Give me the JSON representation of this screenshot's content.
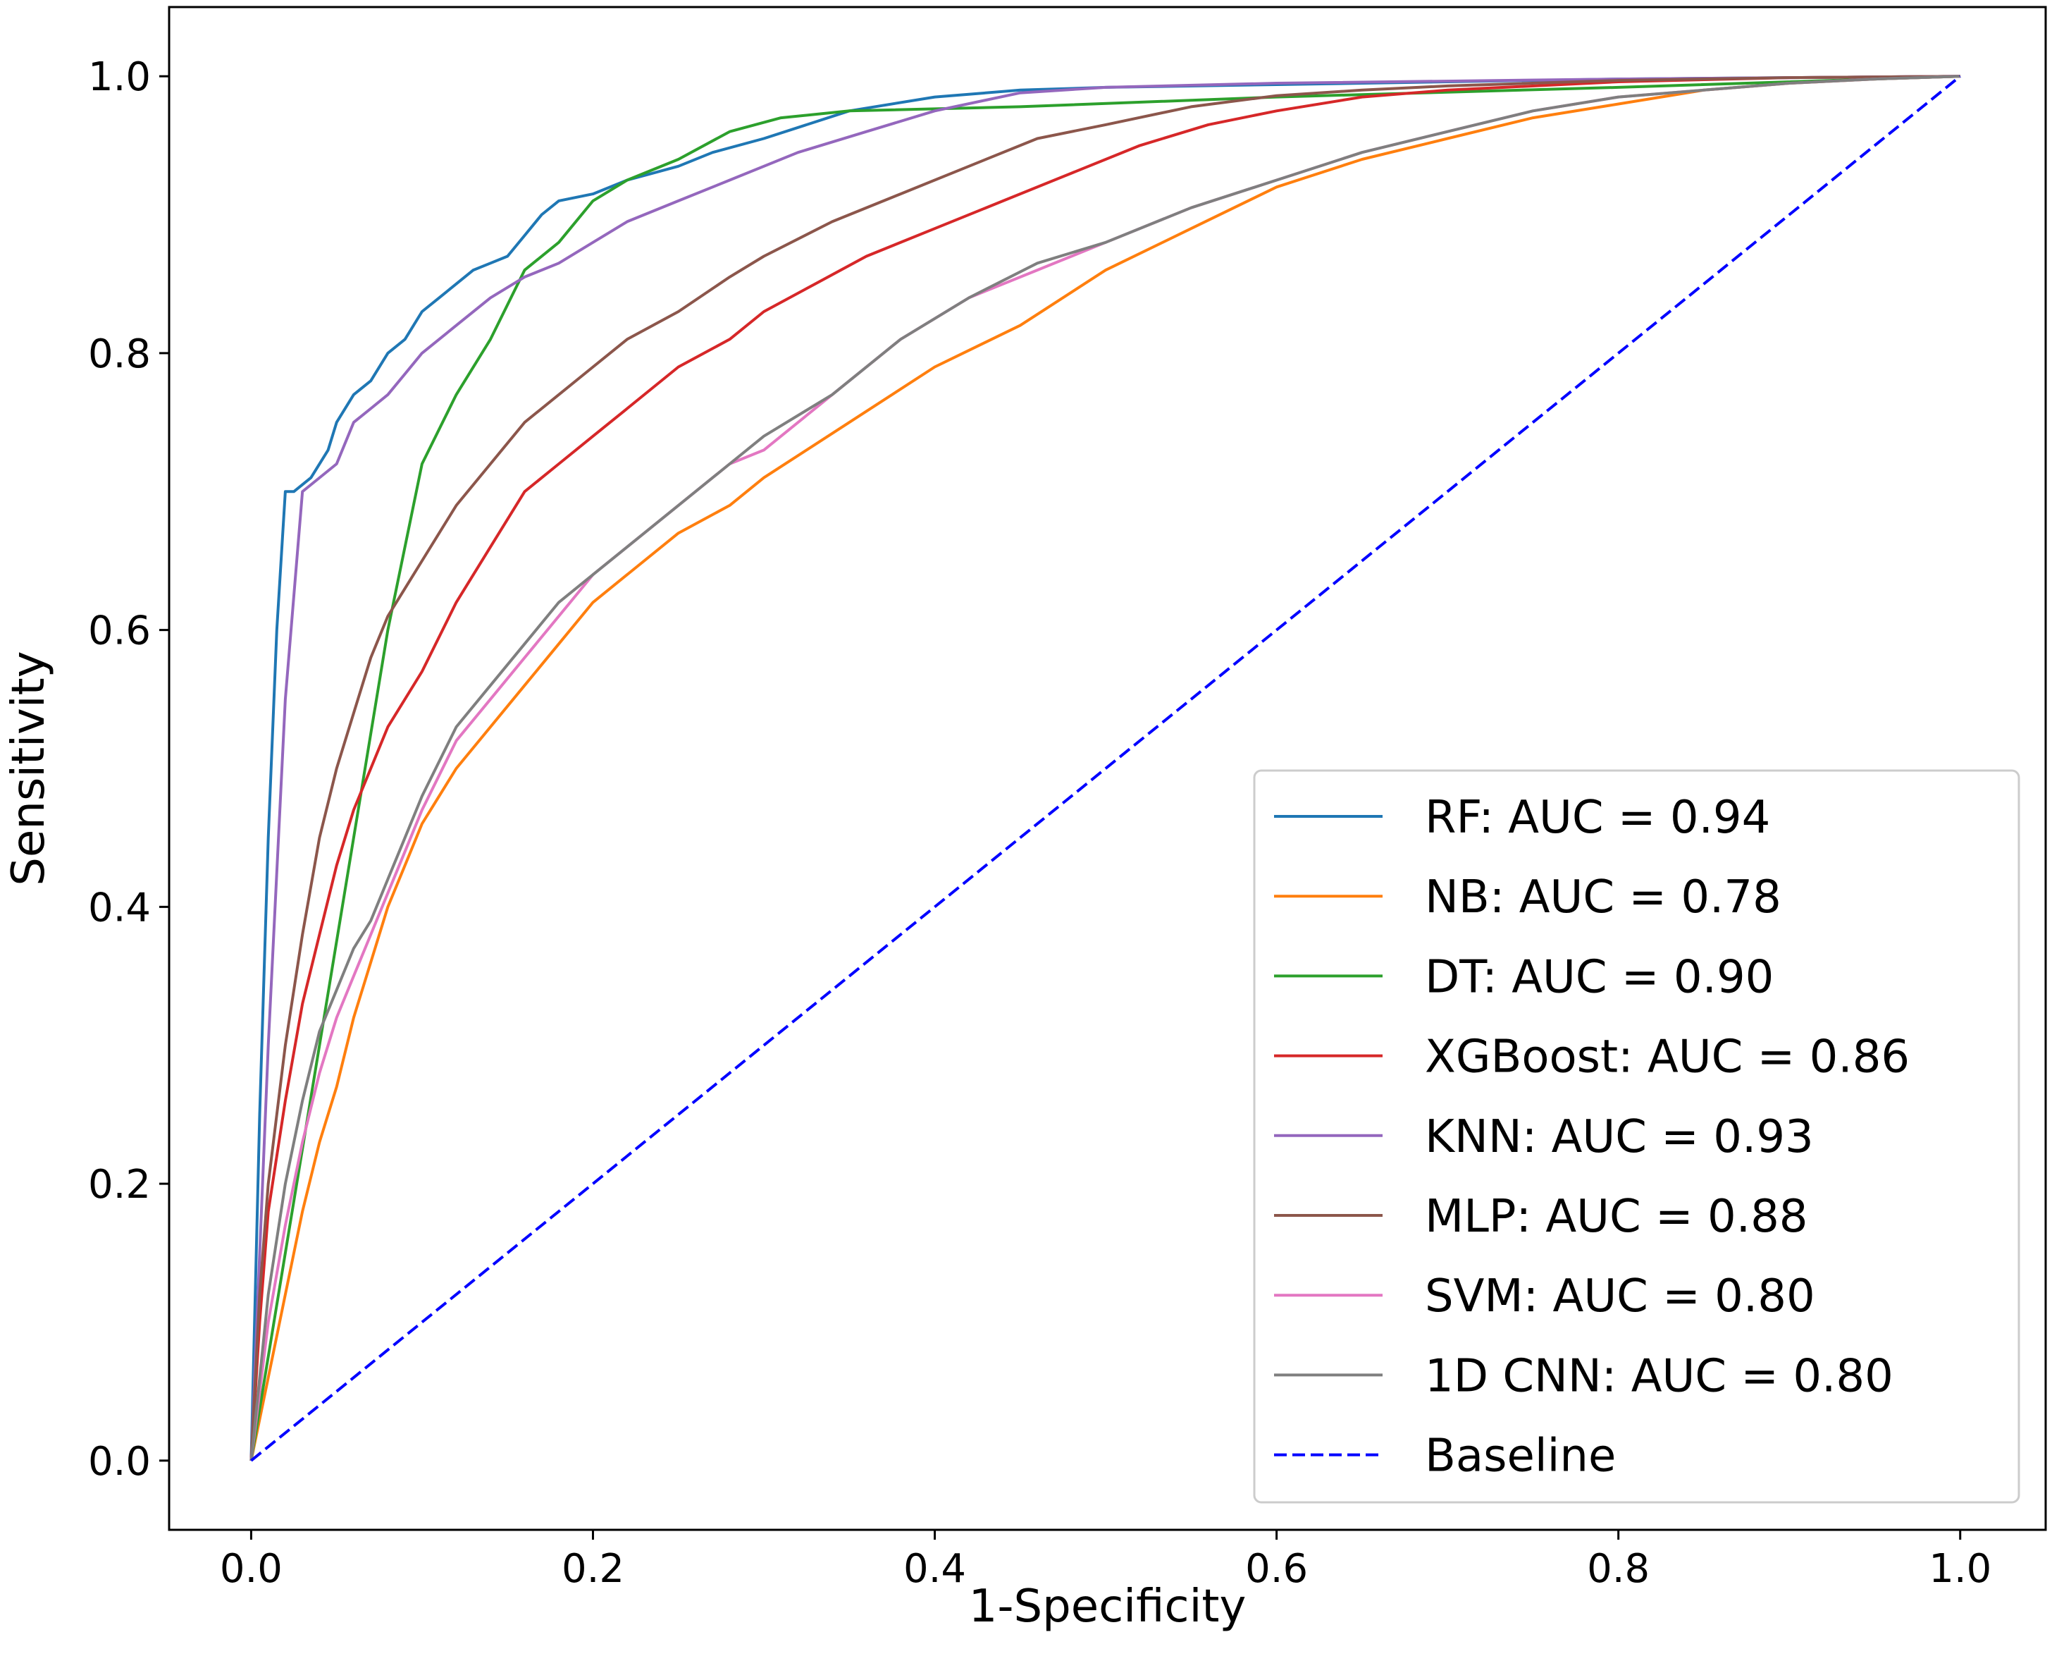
{
  "chart_data": {
    "type": "line",
    "title": "",
    "xlabel": "1-Specificity",
    "ylabel": "Sensitivity",
    "xlim": [
      -0.048,
      1.05
    ],
    "ylim": [
      -0.05,
      1.05
    ],
    "xticks": [
      "0.0",
      "0.2",
      "0.4",
      "0.6",
      "0.8",
      "1.0"
    ],
    "yticks": [
      "0.0",
      "0.2",
      "0.4",
      "0.6",
      "0.8",
      "1.0"
    ],
    "grid": false,
    "legend_position": "lower-right",
    "series": [
      {
        "name": "RF: AUC = 0.94",
        "color": "#1f77b4",
        "dashed": false,
        "x": [
          0,
          0.005,
          0.01,
          0.015,
          0.02,
          0.025,
          0.035,
          0.045,
          0.05,
          0.06,
          0.07,
          0.08,
          0.09,
          0.1,
          0.11,
          0.12,
          0.13,
          0.14,
          0.15,
          0.16,
          0.17,
          0.18,
          0.2,
          0.22,
          0.25,
          0.27,
          0.3,
          0.35,
          0.4,
          0.45,
          0.5,
          0.6,
          0.7,
          0.8,
          0.9,
          1.0
        ],
        "y": [
          0,
          0.25,
          0.45,
          0.6,
          0.7,
          0.7,
          0.71,
          0.73,
          0.75,
          0.77,
          0.78,
          0.8,
          0.81,
          0.83,
          0.84,
          0.85,
          0.86,
          0.865,
          0.87,
          0.885,
          0.9,
          0.91,
          0.915,
          0.925,
          0.935,
          0.945,
          0.955,
          0.975,
          0.985,
          0.99,
          0.992,
          0.994,
          0.996,
          0.998,
          0.999,
          1.0
        ]
      },
      {
        "name": "NB: AUC = 0.78",
        "color": "#ff7f0e",
        "dashed": false,
        "x": [
          0,
          0.01,
          0.02,
          0.03,
          0.04,
          0.05,
          0.06,
          0.07,
          0.08,
          0.09,
          0.1,
          0.12,
          0.14,
          0.16,
          0.18,
          0.2,
          0.22,
          0.25,
          0.28,
          0.3,
          0.35,
          0.4,
          0.45,
          0.5,
          0.55,
          0.6,
          0.65,
          0.7,
          0.75,
          0.8,
          0.85,
          0.9,
          0.95,
          1.0
        ],
        "y": [
          0,
          0.06,
          0.12,
          0.18,
          0.23,
          0.27,
          0.32,
          0.36,
          0.4,
          0.43,
          0.46,
          0.5,
          0.53,
          0.56,
          0.59,
          0.62,
          0.64,
          0.67,
          0.69,
          0.71,
          0.75,
          0.79,
          0.82,
          0.86,
          0.89,
          0.92,
          0.94,
          0.955,
          0.97,
          0.98,
          0.99,
          0.995,
          0.998,
          1.0
        ]
      },
      {
        "name": "DT: AUC = 0.90",
        "color": "#2ca02c",
        "dashed": false,
        "x": [
          0,
          0.02,
          0.04,
          0.06,
          0.08,
          0.1,
          0.12,
          0.14,
          0.16,
          0.18,
          0.2,
          0.22,
          0.25,
          0.28,
          0.31,
          0.35,
          0.45,
          0.6,
          0.8,
          1.0
        ],
        "y": [
          0,
          0.15,
          0.3,
          0.45,
          0.6,
          0.72,
          0.77,
          0.81,
          0.86,
          0.88,
          0.91,
          0.925,
          0.94,
          0.96,
          0.97,
          0.975,
          0.978,
          0.985,
          0.992,
          1.0
        ]
      },
      {
        "name": "XGBoost: AUC = 0.86",
        "color": "#d62728",
        "dashed": false,
        "x": [
          0,
          0.005,
          0.01,
          0.02,
          0.03,
          0.04,
          0.05,
          0.06,
          0.07,
          0.08,
          0.1,
          0.12,
          0.14,
          0.16,
          0.18,
          0.2,
          0.22,
          0.25,
          0.28,
          0.3,
          0.33,
          0.36,
          0.4,
          0.44,
          0.48,
          0.52,
          0.56,
          0.6,
          0.65,
          0.7,
          0.8,
          0.9,
          1.0
        ],
        "y": [
          0,
          0.1,
          0.18,
          0.26,
          0.33,
          0.38,
          0.43,
          0.47,
          0.5,
          0.53,
          0.57,
          0.62,
          0.66,
          0.7,
          0.72,
          0.74,
          0.76,
          0.79,
          0.81,
          0.83,
          0.85,
          0.87,
          0.89,
          0.91,
          0.93,
          0.95,
          0.965,
          0.975,
          0.985,
          0.99,
          0.996,
          0.999,
          1.0
        ]
      },
      {
        "name": "KNN: AUC = 0.93",
        "color": "#9467bd",
        "dashed": false,
        "x": [
          0,
          0.01,
          0.02,
          0.03,
          0.035,
          0.05,
          0.06,
          0.07,
          0.08,
          0.09,
          0.1,
          0.12,
          0.14,
          0.16,
          0.18,
          0.2,
          0.22,
          0.25,
          0.28,
          0.32,
          0.36,
          0.4,
          0.45,
          0.5,
          0.6,
          0.8,
          1.0
        ],
        "y": [
          0,
          0.3,
          0.55,
          0.7,
          0.705,
          0.72,
          0.75,
          0.76,
          0.77,
          0.785,
          0.8,
          0.82,
          0.84,
          0.855,
          0.865,
          0.88,
          0.895,
          0.91,
          0.925,
          0.945,
          0.96,
          0.975,
          0.988,
          0.992,
          0.995,
          0.998,
          1.0
        ]
      },
      {
        "name": "MLP: AUC = 0.88",
        "color": "#8c564b",
        "dashed": false,
        "x": [
          0,
          0.005,
          0.01,
          0.02,
          0.03,
          0.04,
          0.05,
          0.06,
          0.07,
          0.08,
          0.09,
          0.1,
          0.12,
          0.14,
          0.16,
          0.18,
          0.2,
          0.22,
          0.25,
          0.28,
          0.3,
          0.34,
          0.38,
          0.42,
          0.46,
          0.5,
          0.55,
          0.6,
          0.65,
          0.7,
          0.8,
          0.9,
          1.0
        ],
        "y": [
          0,
          0.12,
          0.2,
          0.3,
          0.38,
          0.45,
          0.5,
          0.54,
          0.58,
          0.61,
          0.63,
          0.65,
          0.69,
          0.72,
          0.75,
          0.77,
          0.79,
          0.81,
          0.83,
          0.855,
          0.87,
          0.895,
          0.915,
          0.935,
          0.955,
          0.965,
          0.978,
          0.986,
          0.99,
          0.993,
          0.997,
          0.999,
          1.0
        ]
      },
      {
        "name": "SVM: AUC = 0.80",
        "color": "#e377c2",
        "dashed": false,
        "x": [
          0,
          0.01,
          0.02,
          0.03,
          0.04,
          0.05,
          0.06,
          0.07,
          0.08,
          0.09,
          0.1,
          0.12,
          0.14,
          0.16,
          0.18,
          0.2,
          0.22,
          0.25,
          0.28,
          0.3,
          0.34,
          0.38,
          0.42,
          0.46,
          0.5,
          0.55,
          0.6,
          0.65,
          0.7,
          0.75,
          0.8,
          0.85,
          0.9,
          0.95,
          1.0
        ],
        "y": [
          0,
          0.1,
          0.17,
          0.23,
          0.28,
          0.32,
          0.35,
          0.38,
          0.41,
          0.44,
          0.47,
          0.52,
          0.55,
          0.58,
          0.61,
          0.64,
          0.66,
          0.69,
          0.72,
          0.73,
          0.77,
          0.81,
          0.84,
          0.86,
          0.88,
          0.905,
          0.925,
          0.945,
          0.96,
          0.975,
          0.985,
          0.99,
          0.995,
          0.998,
          1.0
        ]
      },
      {
        "name": "1D CNN: AUC = 0.80",
        "color": "#7f7f7f",
        "dashed": false,
        "x": [
          0,
          0.01,
          0.02,
          0.03,
          0.04,
          0.05,
          0.06,
          0.07,
          0.08,
          0.09,
          0.1,
          0.12,
          0.14,
          0.16,
          0.18,
          0.2,
          0.22,
          0.25,
          0.28,
          0.3,
          0.34,
          0.38,
          0.42,
          0.46,
          0.5,
          0.55,
          0.6,
          0.65,
          0.7,
          0.75,
          0.8,
          0.85,
          0.9,
          0.95,
          1.0
        ],
        "y": [
          0,
          0.12,
          0.2,
          0.26,
          0.31,
          0.34,
          0.37,
          0.39,
          0.42,
          0.45,
          0.48,
          0.53,
          0.56,
          0.59,
          0.62,
          0.64,
          0.66,
          0.69,
          0.72,
          0.74,
          0.77,
          0.81,
          0.84,
          0.865,
          0.88,
          0.905,
          0.925,
          0.945,
          0.96,
          0.975,
          0.985,
          0.99,
          0.995,
          0.998,
          1.0
        ]
      },
      {
        "name": "Baseline",
        "color": "#0000ff",
        "dashed": true,
        "x": [
          0,
          1
        ],
        "y": [
          0,
          1
        ]
      }
    ]
  }
}
